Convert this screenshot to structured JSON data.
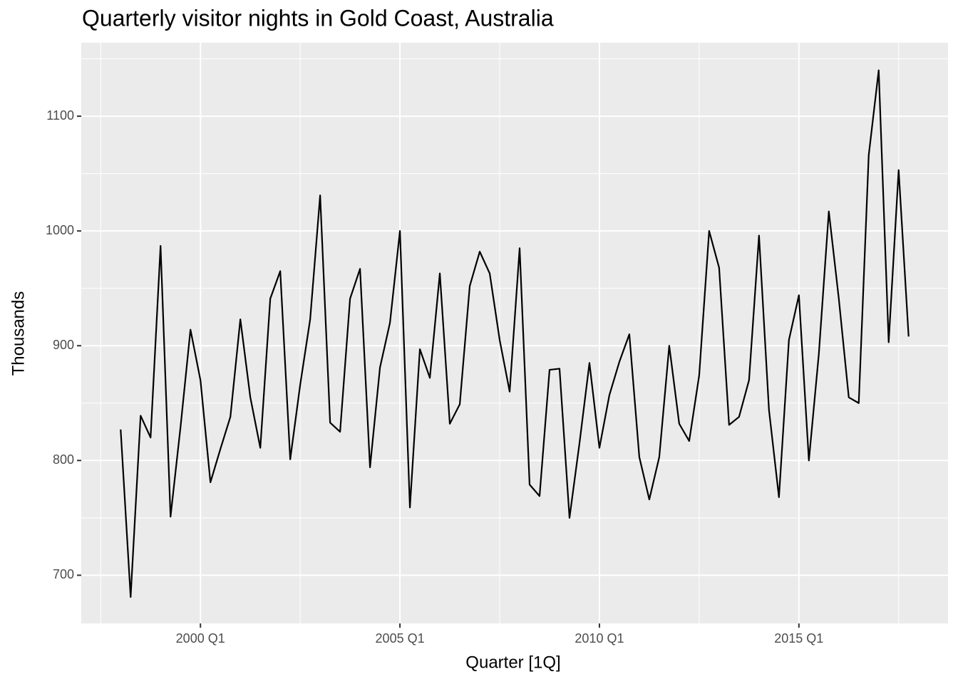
{
  "chart_data": {
    "type": "line",
    "title": "Quarterly visitor nights in Gold Coast, Australia",
    "xlabel": "Quarter [1Q]",
    "ylabel": "Thousands",
    "x": [
      1998,
      1998.25,
      1998.5,
      1998.75,
      1999,
      1999.25,
      1999.5,
      1999.75,
      2000,
      2000.25,
      2000.5,
      2000.75,
      2001,
      2001.25,
      2001.5,
      2001.75,
      2002,
      2002.25,
      2002.5,
      2002.75,
      2003,
      2003.25,
      2003.5,
      2003.75,
      2004,
      2004.25,
      2004.5,
      2004.75,
      2005,
      2005.25,
      2005.5,
      2005.75,
      2006,
      2006.25,
      2006.5,
      2006.75,
      2007,
      2007.25,
      2007.5,
      2007.75,
      2008,
      2008.25,
      2008.5,
      2008.75,
      2009,
      2009.25,
      2009.5,
      2009.75,
      2010,
      2010.25,
      2010.5,
      2010.75,
      2011,
      2011.25,
      2011.5,
      2011.75,
      2012,
      2012.25,
      2012.5,
      2012.75,
      2013,
      2013.25,
      2013.5,
      2013.75,
      2014,
      2014.25,
      2014.5,
      2014.75,
      2015,
      2015.25,
      2015.5,
      2015.75,
      2016,
      2016.25,
      2016.5,
      2016.75,
      2017,
      2017.25,
      2017.5,
      2017.75
    ],
    "series": [
      {
        "name": "Thousands",
        "color": "#000000",
        "values": [
          827,
          681,
          839,
          820,
          987,
          751,
          829,
          914,
          870,
          781,
          810,
          838,
          923,
          855,
          811,
          941,
          965,
          801,
          866,
          923,
          1031,
          833,
          825,
          941,
          967,
          794,
          881,
          920,
          1000,
          759,
          897,
          872,
          963,
          832,
          849,
          952,
          982,
          963,
          905,
          860,
          985,
          779,
          769,
          879,
          880,
          750,
          815,
          885,
          811,
          857,
          886,
          910,
          803,
          766,
          803,
          900,
          832,
          817,
          874,
          1000,
          968,
          831,
          838,
          870,
          996,
          844,
          768,
          905,
          944,
          800,
          893,
          1017,
          941,
          855,
          850,
          1066,
          1140,
          903,
          1053,
          908
        ]
      }
    ],
    "xlim": [
      1997.0125,
      2018.7375
    ],
    "xticks": [
      {
        "value": 2000,
        "label": "2000 Q1"
      },
      {
        "value": 2005,
        "label": "2005 Q1"
      },
      {
        "value": 2010,
        "label": "2010 Q1"
      },
      {
        "value": 2015,
        "label": "2015 Q1"
      }
    ],
    "ylim": [
      658,
      1164
    ],
    "yticks": [
      700,
      800,
      900,
      1000,
      1100
    ],
    "grid": true
  }
}
